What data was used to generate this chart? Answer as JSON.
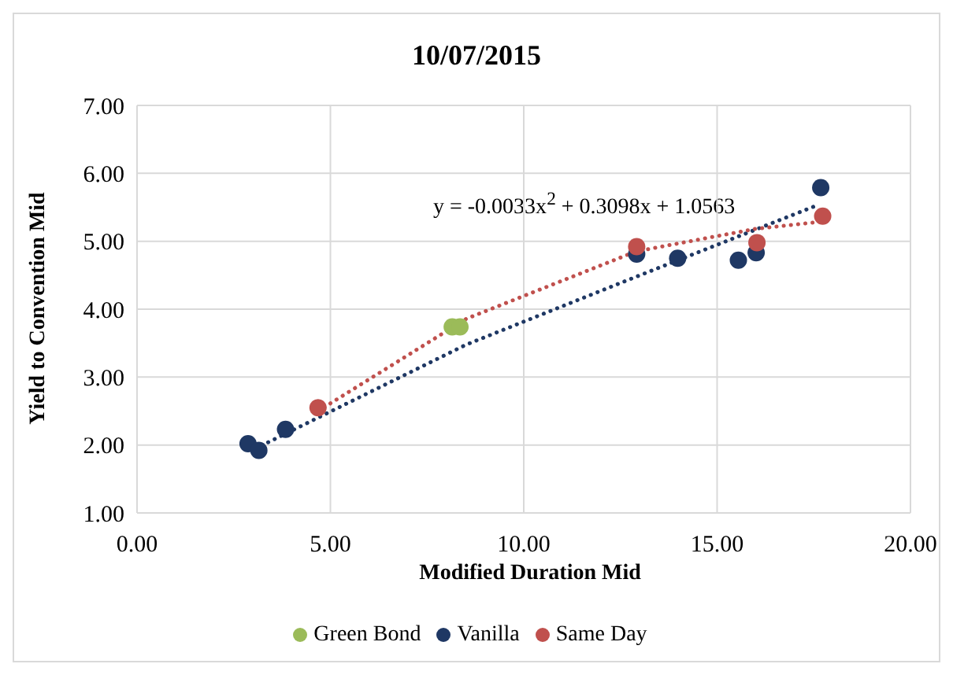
{
  "chart_data": {
    "type": "scatter",
    "title": "10/07/2015",
    "xlabel": "Modified Duration Mid",
    "ylabel": "Yield to Convention Mid",
    "series": [
      {
        "name": "Green Bond",
        "color": "#9bbb59",
        "x": [
          8.15,
          8.35
        ],
        "values": [
          3.74,
          3.74
        ]
      },
      {
        "name": "Vanilla",
        "color": "#1f3864",
        "x": [
          2.87,
          3.15,
          3.84,
          12.92,
          13.98,
          15.55,
          16.01,
          17.68
        ],
        "values": [
          2.02,
          1.92,
          2.23,
          4.81,
          4.75,
          4.72,
          4.83,
          5.79
        ]
      },
      {
        "name": "Same Day",
        "color": "#c0504d",
        "x": [
          4.68,
          12.92,
          16.03,
          17.73
        ],
        "values": [
          2.55,
          4.92,
          4.98,
          5.37
        ]
      },
      {
        "type": "line",
        "color": "#1f3864",
        "line_style": "dotted",
        "marker": "none",
        "x": [
          3.39,
          8.52,
          12.74,
          17.5
        ],
        "values": [
          2.04,
          3.48,
          4.44,
          5.51
        ]
      },
      {
        "type": "line",
        "color": "#c0504d",
        "line_style": "dotted",
        "marker": "none",
        "x": [
          4.68,
          8.52,
          12.9,
          15.97,
          17.9
        ],
        "values": [
          2.5,
          3.86,
          4.85,
          5.18,
          5.3
        ]
      }
    ],
    "xlim": [
      0,
      20
    ],
    "xticks": [
      {
        "value": 0,
        "label": "0.00"
      },
      {
        "value": 5,
        "label": "5.00"
      },
      {
        "value": 10,
        "label": "10.00"
      },
      {
        "value": 15,
        "label": "15.00"
      },
      {
        "value": 20,
        "label": "20.00"
      }
    ],
    "ylim": [
      1,
      7
    ],
    "yticks": [
      {
        "value": 1,
        "label": "1.00"
      },
      {
        "value": 2,
        "label": "2.00"
      },
      {
        "value": 3,
        "label": "3.00"
      },
      {
        "value": 4,
        "label": "4.00"
      },
      {
        "value": 5,
        "label": "5.00"
      },
      {
        "value": 6,
        "label": "6.00"
      },
      {
        "value": 7,
        "label": "7.00"
      }
    ],
    "annotations": [
      "y = -0.0033x$^{2}$ + 0.3098x + 1.0563"
    ],
    "grid": true,
    "legend": "bottom",
    "marker": "circle"
  }
}
